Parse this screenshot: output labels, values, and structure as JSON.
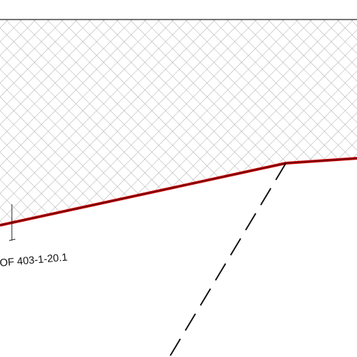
{
  "parcel": {
    "label": "OF 403-1-20.1"
  }
}
